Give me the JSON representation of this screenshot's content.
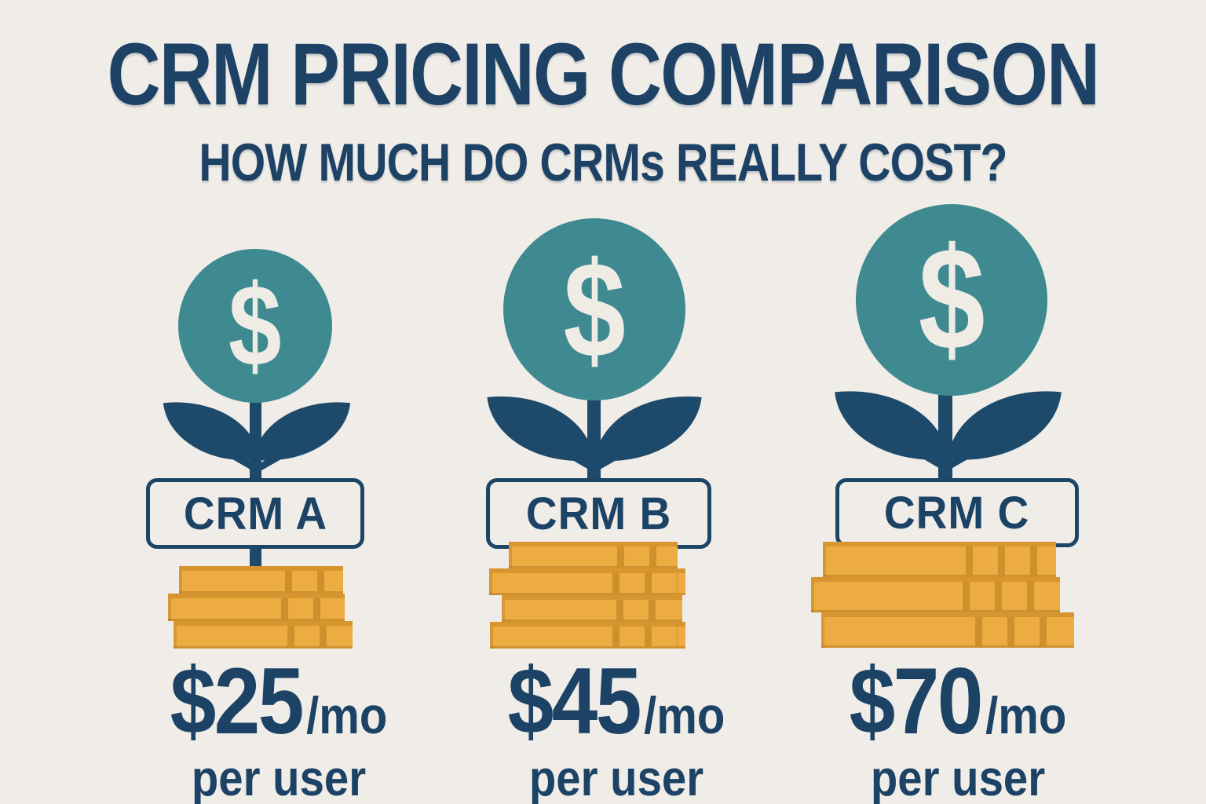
{
  "title": "CRM PRICING COMPARISON",
  "subtitle": "HOW MUCH DO CRMs REALLY COST?",
  "columns": [
    {
      "label": "CRM A",
      "dollar_icon": "$",
      "price_amount": "$25",
      "price_period": "/mo",
      "price_unit": "per user",
      "coin_count": 3
    },
    {
      "label": "CRM B",
      "dollar_icon": "$",
      "price_amount": "$45",
      "price_period": "/mo",
      "price_unit": "per user",
      "coin_count": 4
    },
    {
      "label": "CRM C",
      "dollar_icon": "$",
      "price_amount": "$70",
      "price_period": "/mo",
      "price_unit": "per user",
      "coin_count": 3
    }
  ],
  "colors": {
    "background": "#f0ede8",
    "navy_text": "#1c4365",
    "plant_navy": "#1d4a6b",
    "teal_circle": "#3e8a90",
    "coin_gold": "#ecac41",
    "coin_edge": "#cf8f2c",
    "cream": "#efece5"
  },
  "chart_data": {
    "type": "bar",
    "categories": [
      "CRM A",
      "CRM B",
      "CRM C"
    ],
    "values": [
      25,
      45,
      70
    ],
    "unit": "USD per user per month",
    "title": "CRM PRICING COMPARISON",
    "subtitle": "HOW MUCH DO CRMs REALLY COST?",
    "ylabel": "Price ($/mo per user)",
    "legend": "none",
    "notes": "Each CRM shown as a money plant over a stack of gold coins; coin stacks contain 3, 4 and 3 coins respectively, plant size grows with price."
  }
}
